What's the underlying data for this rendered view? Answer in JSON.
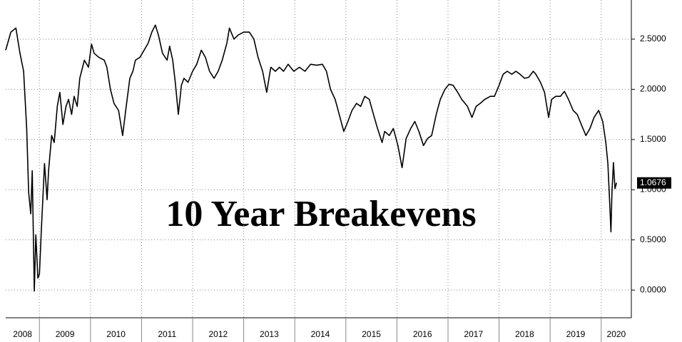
{
  "chart_data": {
    "type": "line",
    "annotation": "10 Year Breakevens",
    "color": "#000000",
    "grid": true,
    "xlim": [
      2008.34,
      2020.59
    ],
    "ylim": [
      -0.276,
      2.89
    ],
    "xticks": [
      2008,
      2009,
      2010,
      2011,
      2012,
      2013,
      2014,
      2015,
      2016,
      2017,
      2018,
      2019,
      2020
    ],
    "yticks": [
      {
        "value": 0,
        "label": "0.0000"
      },
      {
        "value": 0.5,
        "label": "0.5000"
      },
      {
        "value": 1,
        "label": "1.0000"
      },
      {
        "value": 1.5,
        "label": "1.5000"
      },
      {
        "value": 2,
        "label": "2.0000"
      },
      {
        "value": 2.5,
        "label": "2.5000"
      }
    ],
    "last_value": 1.0676,
    "x": [
      2008.34,
      2008.44,
      2008.54,
      2008.62,
      2008.69,
      2008.75,
      2008.79,
      2008.83,
      2008.86,
      2008.9,
      2008.93,
      2008.97,
      2009.0,
      2009.04,
      2009.1,
      2009.15,
      2009.18,
      2009.24,
      2009.29,
      2009.35,
      2009.4,
      2009.46,
      2009.52,
      2009.57,
      2009.63,
      2009.68,
      2009.74,
      2009.79,
      2009.88,
      2009.96,
      2010.02,
      2010.07,
      2010.16,
      2010.27,
      2010.32,
      2010.39,
      2010.46,
      2010.55,
      2010.63,
      2010.69,
      2010.77,
      2010.83,
      2010.88,
      2010.97,
      2011.05,
      2011.13,
      2011.2,
      2011.27,
      2011.33,
      2011.41,
      2011.5,
      2011.55,
      2011.61,
      2011.66,
      2011.72,
      2011.78,
      2011.83,
      2011.91,
      2012.0,
      2012.08,
      2012.17,
      2012.25,
      2012.33,
      2012.42,
      2012.5,
      2012.58,
      2012.67,
      2012.72,
      2012.81,
      2012.89,
      2013.0,
      2013.11,
      2013.2,
      2013.28,
      2013.37,
      2013.45,
      2013.53,
      2013.62,
      2013.7,
      2013.78,
      2013.87,
      2013.98,
      2014.09,
      2014.2,
      2014.31,
      2014.43,
      2014.54,
      2014.62,
      2014.7,
      2014.79,
      2014.87,
      2014.96,
      2015.04,
      2015.12,
      2015.21,
      2015.29,
      2015.37,
      2015.46,
      2015.54,
      2015.62,
      2015.71,
      2015.76,
      2015.85,
      2015.93,
      2016.02,
      2016.1,
      2016.18,
      2016.27,
      2016.35,
      2016.43,
      2016.52,
      2016.6,
      2016.68,
      2016.77,
      2016.85,
      2016.94,
      2017.02,
      2017.1,
      2017.19,
      2017.27,
      2017.38,
      2017.47,
      2017.55,
      2017.63,
      2017.72,
      2017.83,
      2017.91,
      2018.0,
      2018.08,
      2018.16,
      2018.25,
      2018.33,
      2018.41,
      2018.5,
      2018.58,
      2018.67,
      2018.72,
      2018.81,
      2018.89,
      2018.97,
      2019.03,
      2019.11,
      2019.2,
      2019.28,
      2019.36,
      2019.45,
      2019.53,
      2019.61,
      2019.7,
      2019.78,
      2019.86,
      2019.95,
      2020.03,
      2020.09,
      2020.13,
      2020.16,
      2020.19,
      2020.21,
      2020.24,
      2020.27,
      2020.3
    ],
    "values": [
      2.39,
      2.57,
      2.61,
      2.36,
      2.18,
      1.61,
      0.97,
      0.76,
      1.19,
      -0.01,
      0.55,
      0.12,
      0.16,
      0.62,
      1.26,
      0.9,
      1.19,
      1.54,
      1.47,
      1.83,
      1.97,
      1.65,
      1.83,
      1.9,
      1.75,
      1.93,
      1.83,
      2.11,
      2.29,
      2.22,
      2.45,
      2.36,
      2.32,
      2.29,
      2.22,
      2.0,
      1.86,
      1.79,
      1.54,
      1.79,
      2.11,
      2.18,
      2.29,
      2.32,
      2.39,
      2.46,
      2.57,
      2.64,
      2.54,
      2.36,
      2.29,
      2.43,
      2.29,
      2.07,
      1.75,
      2.04,
      2.11,
      2.07,
      2.18,
      2.25,
      2.39,
      2.32,
      2.18,
      2.11,
      2.18,
      2.29,
      2.46,
      2.61,
      2.5,
      2.54,
      2.57,
      2.57,
      2.5,
      2.32,
      2.18,
      1.97,
      2.22,
      2.18,
      2.22,
      2.18,
      2.25,
      2.18,
      2.22,
      2.18,
      2.25,
      2.24,
      2.25,
      2.18,
      2.0,
      1.9,
      1.75,
      1.58,
      1.68,
      1.79,
      1.86,
      1.83,
      1.93,
      1.9,
      1.75,
      1.61,
      1.47,
      1.58,
      1.54,
      1.61,
      1.44,
      1.22,
      1.51,
      1.61,
      1.68,
      1.58,
      1.44,
      1.51,
      1.54,
      1.75,
      1.9,
      2.0,
      2.05,
      2.04,
      1.97,
      1.9,
      1.83,
      1.72,
      1.83,
      1.86,
      1.9,
      1.93,
      1.93,
      2.04,
      2.15,
      2.18,
      2.15,
      2.18,
      2.15,
      2.11,
      2.12,
      2.18,
      2.15,
      2.07,
      1.97,
      1.72,
      1.9,
      1.93,
      1.93,
      1.98,
      1.9,
      1.79,
      1.75,
      1.65,
      1.54,
      1.61,
      1.72,
      1.79,
      1.68,
      1.47,
      1.26,
      0.94,
      0.58,
      0.97,
      1.27,
      1.01,
      1.07
    ]
  }
}
